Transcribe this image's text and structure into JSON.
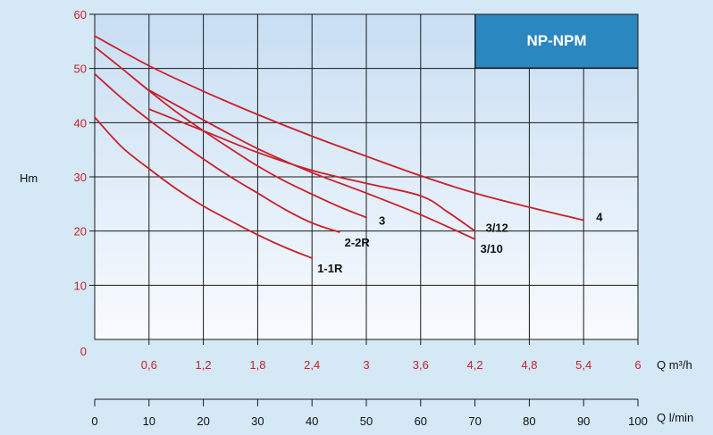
{
  "chart_data": {
    "type": "line",
    "title": "NP-NPM",
    "ylabel": "Hm",
    "xlabel": "Q m³/h",
    "x2label": "Q l/min",
    "xlim": [
      0,
      6
    ],
    "ylim": [
      0,
      60
    ],
    "x2lim": [
      0,
      100
    ],
    "x_ticks": [
      "0,6",
      "1,2",
      "1,8",
      "2,4",
      "3",
      "3,6",
      "4,2",
      "4,8",
      "5,4",
      "6"
    ],
    "x_tick_values": [
      0.6,
      1.2,
      1.8,
      2.4,
      3,
      3.6,
      4.2,
      4.8,
      5.4,
      6
    ],
    "x2_ticks": [
      "0",
      "10",
      "20",
      "30",
      "40",
      "50",
      "60",
      "70",
      "80",
      "90",
      "100"
    ],
    "x2_tick_values": [
      0,
      10,
      20,
      30,
      40,
      50,
      60,
      70,
      80,
      90,
      100
    ],
    "y_ticks": [
      "0",
      "10",
      "20",
      "30",
      "40",
      "50",
      "60"
    ],
    "y_tick_values": [
      0,
      10,
      20,
      30,
      40,
      50,
      60
    ],
    "grid": true,
    "colors": {
      "curve": "#c8202a",
      "grid": "#1a1a1a",
      "title_box": "#2b87c0",
      "plot_top": "#c8def3",
      "plot_bottom": "#f8fbfe",
      "page": "#d4e8f6"
    },
    "series": [
      {
        "name": "1-1R",
        "x": [
          0,
          0.3,
          0.6,
          0.9,
          1.2,
          1.5,
          1.8,
          2.1,
          2.4
        ],
        "y": [
          41,
          35.5,
          31.5,
          27.8,
          24.6,
          21.9,
          19.3,
          17.0,
          15.0
        ]
      },
      {
        "name": "2-2R",
        "x": [
          0,
          0.3,
          0.6,
          0.9,
          1.2,
          1.5,
          1.8,
          2.1,
          2.4,
          2.7
        ],
        "y": [
          49,
          44.5,
          40.5,
          36.8,
          33.3,
          30.0,
          27.0,
          24.0,
          21.5,
          19.8
        ]
      },
      {
        "name": "3",
        "x": [
          0,
          0.3,
          0.6,
          0.9,
          1.2,
          1.5,
          1.8,
          2.1,
          2.4,
          2.7,
          3.0
        ],
        "y": [
          54,
          50.0,
          45.9,
          42.0,
          38.5,
          35.2,
          32.0,
          29.2,
          26.8,
          24.5,
          22.5
        ]
      },
      {
        "name": "3/10",
        "x": [
          0.6,
          1.2,
          1.8,
          2.4,
          3.0,
          3.6,
          4.2
        ],
        "y": [
          46,
          40.5,
          35.2,
          30.8,
          27.0,
          23.0,
          18.5
        ]
      },
      {
        "name": "3/12",
        "x": [
          0.6,
          1.2,
          1.8,
          2.4,
          3.0,
          3.6,
          3.9,
          4.2
        ],
        "y": [
          42.5,
          38.5,
          34.5,
          31.2,
          28.8,
          26.5,
          23.5,
          20.0
        ]
      },
      {
        "name": "4",
        "x": [
          0,
          0.6,
          1.2,
          1.8,
          2.4,
          3.0,
          3.6,
          4.2,
          4.8,
          5.4
        ],
        "y": [
          56,
          50.5,
          45.8,
          41.5,
          37.5,
          33.8,
          30.2,
          27.0,
          24.4,
          22.0
        ]
      }
    ],
    "curve_labels": [
      "1-1R",
      "2-2R",
      "3",
      "3/10",
      "3/12",
      "4"
    ]
  }
}
